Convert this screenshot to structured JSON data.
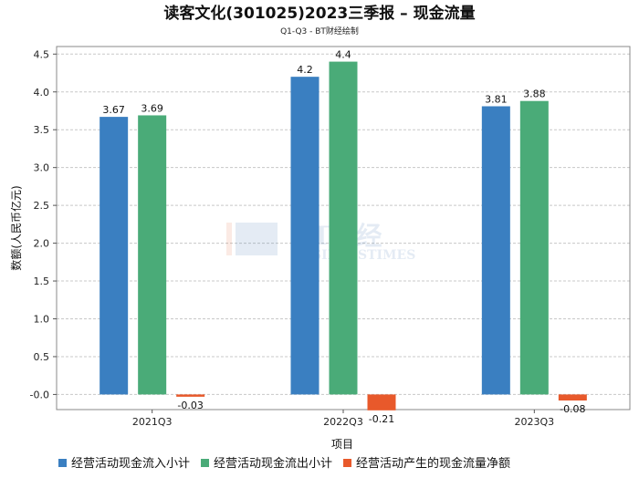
{
  "chart_data": {
    "type": "bar",
    "title": "读客文化(301025)2023三季报 – 现金流量",
    "subtitle": "Q1-Q3 - BT财经绘制",
    "xlabel": "项目",
    "ylabel": "数额(人民币亿元)",
    "categories": [
      "2021Q3",
      "2022Q3",
      "2023Q3"
    ],
    "ylim": [
      -0.2,
      4.6
    ],
    "yticks": [
      "-0.0",
      "0.5",
      "1.0",
      "1.5",
      "2.0",
      "2.5",
      "3.0",
      "3.5",
      "4.0",
      "4.5"
    ],
    "ytick_values": [
      0,
      0.5,
      1.0,
      1.5,
      2.0,
      2.5,
      3.0,
      3.5,
      4.0,
      4.5
    ],
    "grid": true,
    "legend_position": "bottom",
    "series": [
      {
        "name": "经营活动现金流入小计",
        "color": "#3a7fc1",
        "values": [
          3.67,
          4.2,
          3.81
        ],
        "labels": [
          "3.67",
          "4.2",
          "3.81"
        ]
      },
      {
        "name": "经营活动现金流出小计",
        "color": "#4aab78",
        "values": [
          3.69,
          4.4,
          3.88
        ],
        "labels": [
          "3.69",
          "4.4",
          "3.88"
        ]
      },
      {
        "name": "经营活动产生的现金流量净额",
        "color": "#e8592b",
        "values": [
          -0.03,
          -0.21,
          -0.08
        ],
        "labels": [
          "-0.03",
          "-0.21",
          "-0.08"
        ]
      }
    ]
  },
  "watermark": {
    "text": "BT财经",
    "subtext": "BUSINESSTIMES"
  }
}
